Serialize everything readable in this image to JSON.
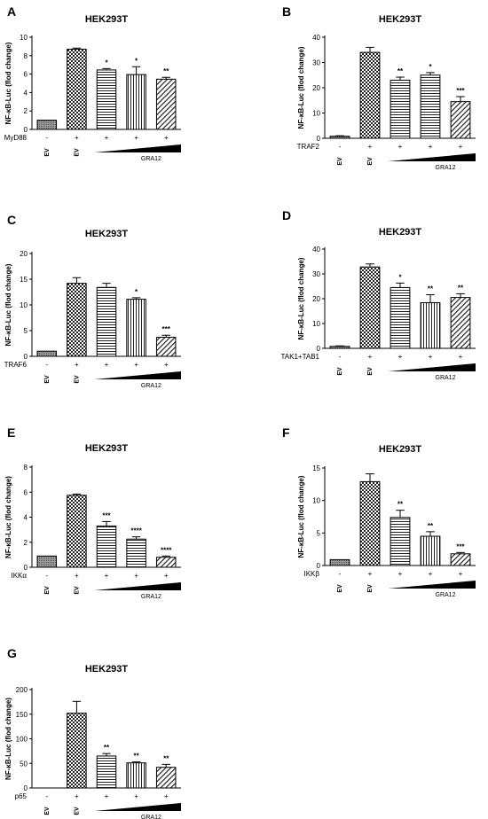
{
  "chart_data": [
    {
      "panel": "A",
      "type": "bar",
      "title": "HEK293T",
      "ylabel": "NF-κB-Luc (flod change)",
      "ylim": [
        0,
        10
      ],
      "yticks": [
        0,
        2,
        4,
        6,
        8,
        10
      ],
      "stimulus": "MyD88",
      "signs": [
        "-",
        "+",
        "+",
        "+",
        "+"
      ],
      "vector_labels": [
        "EV",
        "EV"
      ],
      "treatment": "GRA12",
      "values": [
        1.0,
        8.7,
        6.45,
        5.95,
        5.45
      ],
      "errors": [
        0.0,
        0.12,
        0.15,
        0.85,
        0.2
      ],
      "significance": [
        "",
        "",
        "*",
        "*",
        "**"
      ],
      "patterns": [
        "gray",
        "checker",
        "hlines",
        "vlines",
        "diag"
      ]
    },
    {
      "panel": "B",
      "type": "bar",
      "title": "HEK293T",
      "ylabel": "NF-κB-Luc (flod change)",
      "ylim": [
        0,
        40
      ],
      "yticks": [
        0,
        10,
        20,
        30,
        40
      ],
      "stimulus": "TRAF2",
      "signs": [
        "-",
        "+",
        "+",
        "+",
        "+"
      ],
      "vector_labels": [
        "EV",
        "EV"
      ],
      "treatment": "GRA12",
      "values": [
        0.8,
        34.0,
        23.0,
        25.0,
        14.5
      ],
      "errors": [
        0.2,
        2.0,
        1.2,
        1.0,
        2.0
      ],
      "significance": [
        "",
        "",
        "**",
        "*",
        "***"
      ],
      "patterns": [
        "gray",
        "checker",
        "hlines",
        "hlines",
        "diag"
      ]
    },
    {
      "panel": "C",
      "type": "bar",
      "title": "HEK293T",
      "ylabel": "NF-κB-Luc (flod change)",
      "ylim": [
        0,
        20
      ],
      "yticks": [
        0,
        5,
        10,
        15,
        20
      ],
      "stimulus": "TRAF6",
      "signs": [
        "-",
        "+",
        "+",
        "+",
        "+"
      ],
      "vector_labels": [
        "EV",
        "EV"
      ],
      "treatment": "GRA12",
      "values": [
        1.0,
        14.2,
        13.4,
        11.1,
        3.7
      ],
      "errors": [
        0.0,
        1.1,
        0.8,
        0.3,
        0.4
      ],
      "significance": [
        "",
        "",
        "",
        "*",
        "***"
      ],
      "patterns": [
        "gray",
        "checker",
        "hlines",
        "vlines",
        "diag"
      ]
    },
    {
      "panel": "D",
      "type": "bar",
      "title": "HEK293T",
      "ylabel": "NF-κB-Luc (flod change)",
      "ylim": [
        0,
        40
      ],
      "yticks": [
        0,
        10,
        20,
        30,
        40
      ],
      "stimulus": "TAK1+TAB1",
      "signs": [
        "-",
        "+",
        "+",
        "+",
        "+"
      ],
      "vector_labels": [
        "EV",
        "EV"
      ],
      "treatment": "GRA12",
      "values": [
        0.8,
        32.8,
        24.5,
        18.4,
        20.5
      ],
      "errors": [
        0.2,
        1.2,
        1.8,
        3.2,
        1.5
      ],
      "significance": [
        "",
        "",
        "*",
        "**",
        "**"
      ],
      "patterns": [
        "gray",
        "checker",
        "hlines",
        "vlines",
        "diag"
      ]
    },
    {
      "panel": "E",
      "type": "bar",
      "title": "HEK293T",
      "ylabel": "NF-κB-Luc (flod change)",
      "ylim": [
        0,
        8
      ],
      "yticks": [
        0,
        2,
        4,
        6,
        8
      ],
      "stimulus": "IKKα",
      "signs": [
        "-",
        "+",
        "+",
        "+",
        "+"
      ],
      "vector_labels": [
        "EV",
        "EV"
      ],
      "treatment": "GRA12",
      "values": [
        0.9,
        5.75,
        3.3,
        2.25,
        0.8
      ],
      "errors": [
        0.0,
        0.1,
        0.35,
        0.18,
        0.1
      ],
      "significance": [
        "",
        "",
        "***",
        "****",
        "****"
      ],
      "patterns": [
        "gray",
        "checker",
        "hlines",
        "hlines",
        "diag"
      ]
    },
    {
      "panel": "F",
      "type": "bar",
      "title": "HEK293T",
      "ylabel": "NF-κB-Luc (flod change)",
      "ylim": [
        0,
        15
      ],
      "yticks": [
        0,
        5,
        10,
        15
      ],
      "stimulus": "IKKβ",
      "signs": [
        "-",
        "+",
        "+",
        "+",
        "+"
      ],
      "vector_labels": [
        "EV",
        "EV"
      ],
      "treatment": "GRA12",
      "values": [
        0.9,
        12.9,
        7.4,
        4.5,
        1.8
      ],
      "errors": [
        0.0,
        1.2,
        1.1,
        0.7,
        0.2
      ],
      "significance": [
        "",
        "",
        "**",
        "**",
        "***"
      ],
      "patterns": [
        "gray",
        "checker",
        "hlines",
        "vlines",
        "diag"
      ]
    },
    {
      "panel": "G",
      "type": "bar",
      "title": "HEK293T",
      "ylabel": "NF-κB-Luc (flod change)",
      "ylim": [
        0,
        200
      ],
      "yticks": [
        0,
        50,
        100,
        150,
        200
      ],
      "stimulus": "p65",
      "signs": [
        "-",
        "+",
        "+",
        "+",
        "+"
      ],
      "vector_labels": [
        "EV",
        "EV"
      ],
      "treatment": "GRA12",
      "values": [
        0.0,
        152,
        65,
        51,
        42
      ],
      "errors": [
        0.0,
        24,
        5,
        2,
        6
      ],
      "significance": [
        "",
        "",
        "**",
        "**",
        "**"
      ],
      "patterns": [
        "gray",
        "checker",
        "hlines",
        "vlines",
        "diag"
      ]
    }
  ]
}
